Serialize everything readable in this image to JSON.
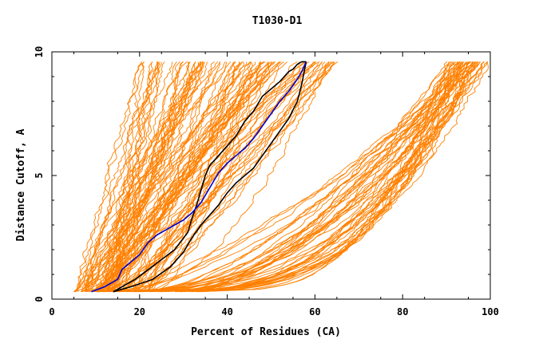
{
  "chart_data": {
    "type": "line",
    "title": "T1030-D1",
    "xlabel": "Percent of Residues (CA)",
    "ylabel": "Distance Cutoff, A",
    "xlim": [
      0,
      100
    ],
    "ylim": [
      0,
      10
    ],
    "xticks": [
      0,
      20,
      40,
      60,
      80,
      100
    ],
    "yticks": [
      0,
      5,
      10
    ],
    "grid": false,
    "legend": "none",
    "colors": {
      "models": "#ff8000",
      "highlight_blue": "#0000cc",
      "highlight_black": "#000000"
    },
    "background_series_count": 150,
    "series": [
      {
        "color": "#000000",
        "x": [
          14,
          16,
          19,
          22,
          25,
          28,
          31,
          32,
          33,
          34,
          35,
          36,
          38,
          40,
          42,
          44,
          46,
          48,
          50,
          52,
          53,
          54,
          55,
          56,
          57,
          58
        ],
        "y": [
          0.3,
          0.5,
          0.8,
          1.2,
          1.6,
          2.0,
          2.7,
          3.3,
          3.8,
          4.4,
          5.0,
          5.4,
          5.8,
          6.2,
          6.6,
          7.2,
          7.6,
          8.2,
          8.5,
          8.8,
          9.0,
          9.2,
          9.3,
          9.5,
          9.6,
          9.6
        ]
      },
      {
        "color": "#000000",
        "x": [
          14,
          18,
          23,
          27,
          30,
          32,
          34,
          36,
          38,
          40,
          42,
          44,
          46,
          48,
          50,
          52,
          54,
          56,
          57,
          58
        ],
        "y": [
          0.3,
          0.5,
          0.8,
          1.3,
          1.9,
          2.5,
          3.0,
          3.4,
          3.8,
          4.3,
          4.7,
          5.0,
          5.3,
          5.8,
          6.3,
          6.8,
          7.3,
          8.0,
          8.7,
          9.6
        ]
      },
      {
        "color": "#0000cc",
        "x": [
          9,
          12,
          15,
          16,
          18,
          20,
          22,
          24,
          26,
          28,
          30,
          32,
          34,
          36,
          38,
          40,
          42,
          44,
          46,
          48,
          50,
          52,
          54,
          56,
          57,
          58
        ],
        "y": [
          0.3,
          0.5,
          0.8,
          1.2,
          1.5,
          1.8,
          2.3,
          2.6,
          2.8,
          3.0,
          3.2,
          3.5,
          3.9,
          4.5,
          5.1,
          5.5,
          5.8,
          6.1,
          6.5,
          7.0,
          7.5,
          8.0,
          8.4,
          8.9,
          9.2,
          9.6
        ]
      }
    ]
  }
}
